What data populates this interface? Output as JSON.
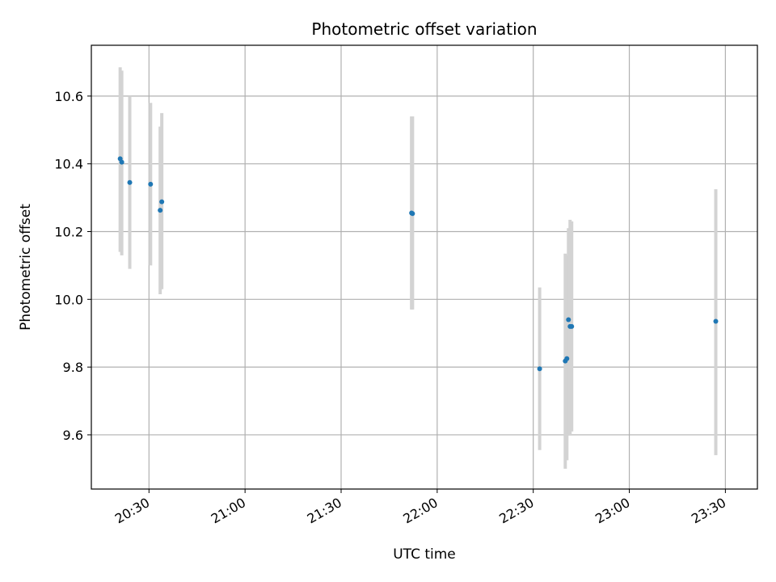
{
  "chart_data": {
    "type": "scatter",
    "title": "Photometric offset variation",
    "xlabel": "UTC time",
    "ylabel": "Photometric offset",
    "grid": true,
    "x_axis": {
      "kind": "time",
      "range": [
        "20:12",
        "23:40"
      ],
      "ticks": [
        "20:30",
        "21:00",
        "21:30",
        "22:00",
        "22:30",
        "23:00",
        "23:30"
      ],
      "tick_label_rotation": 30
    },
    "y_axis": {
      "range": [
        9.44,
        10.75
      ],
      "ticks": [
        9.6,
        9.8,
        10.0,
        10.2,
        10.4,
        10.6
      ],
      "tick_labels": [
        "9.6",
        "9.8",
        "10.0",
        "10.2",
        "10.4",
        "10.6"
      ]
    },
    "points": [
      {
        "x": "20:21",
        "y": 10.415,
        "y_low": 10.14,
        "y_high": 10.685
      },
      {
        "x": "20:21.5",
        "y": 10.405,
        "y_low": 10.13,
        "y_high": 10.675
      },
      {
        "x": "20:24",
        "y": 10.345,
        "y_low": 10.09,
        "y_high": 10.6
      },
      {
        "x": "20:30.5",
        "y": 10.34,
        "y_low": 10.1,
        "y_high": 10.58
      },
      {
        "x": "20:33.5",
        "y": 10.263,
        "y_low": 10.015,
        "y_high": 10.51
      },
      {
        "x": "20:34",
        "y": 10.288,
        "y_low": 10.03,
        "y_high": 10.55
      },
      {
        "x": "21:52",
        "y": 10.255,
        "y_low": 9.97,
        "y_high": 10.54
      },
      {
        "x": "21:52.3",
        "y": 10.253,
        "y_low": 9.97,
        "y_high": 10.54
      },
      {
        "x": "22:32",
        "y": 9.795,
        "y_low": 9.555,
        "y_high": 10.035
      },
      {
        "x": "22:40",
        "y": 9.818,
        "y_low": 9.5,
        "y_high": 10.135
      },
      {
        "x": "22:40.5",
        "y": 9.825,
        "y_low": 9.525,
        "y_high": 10.13
      },
      {
        "x": "22:41",
        "y": 9.94,
        "y_low": 9.6,
        "y_high": 10.21
      },
      {
        "x": "22:41.5",
        "y": 9.92,
        "y_low": 9.6,
        "y_high": 10.235
      },
      {
        "x": "22:42",
        "y": 9.92,
        "y_low": 9.61,
        "y_high": 10.23
      },
      {
        "x": "23:27",
        "y": 9.935,
        "y_low": 9.54,
        "y_high": 10.325
      }
    ],
    "colors": {
      "points": "#1f77b4",
      "errorbars": "#d3d3d3",
      "grid": "#b0b0b0",
      "axes": "#000000"
    }
  }
}
